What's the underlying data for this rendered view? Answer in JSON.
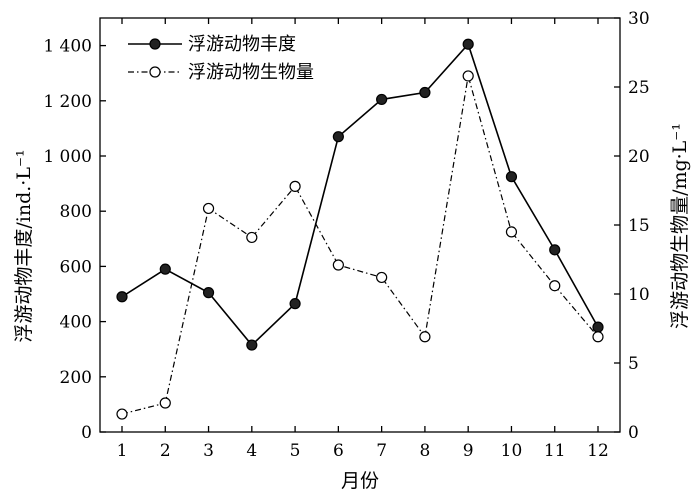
{
  "chart_data": {
    "type": "line",
    "categories": [
      "1",
      "2",
      "3",
      "4",
      "5",
      "6",
      "7",
      "8",
      "9",
      "10",
      "11",
      "12"
    ],
    "xlabel": "月份",
    "ylabel": "浮游动物丰度/ind.·L⁻¹",
    "y2label": "浮游动物生物量/mg·L⁻¹",
    "ylim": [
      0,
      1500
    ],
    "y2lim": [
      0,
      30
    ],
    "y_ticks": [
      0,
      200,
      400,
      600,
      800,
      1000,
      1200,
      1400
    ],
    "y_tick_labels": [
      "0",
      "200",
      "400",
      "600",
      "800",
      "1 000",
      "1 200",
      "1 400"
    ],
    "y2_ticks": [
      0,
      5,
      10,
      15,
      20,
      25,
      30
    ],
    "y2_tick_labels": [
      "0",
      "5",
      "10",
      "15",
      "20",
      "25",
      "30"
    ],
    "legend_position": "top-left",
    "grid": false,
    "series": [
      {
        "name": "浮游动物丰度",
        "axis": "left",
        "style": "solid-filled-circle",
        "color": "#000000",
        "values": [
          490,
          590,
          505,
          315,
          465,
          1070,
          1205,
          1230,
          1405,
          925,
          660,
          380
        ]
      },
      {
        "name": "浮游动物生物量",
        "axis": "right",
        "style": "dashdot-open-circle",
        "color": "#000000",
        "values": [
          1.3,
          2.1,
          16.2,
          14.1,
          17.8,
          12.1,
          11.2,
          6.9,
          25.8,
          14.5,
          10.6,
          6.9
        ]
      }
    ]
  }
}
